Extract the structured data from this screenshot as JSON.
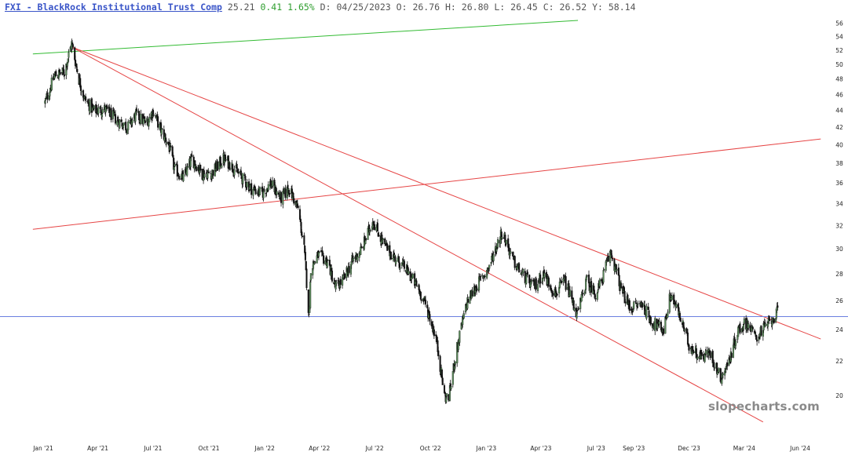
{
  "header": {
    "symbol_text": "FXI - BlackRock Institutional Trust Comp",
    "last": "25.21",
    "change": "0.41",
    "change_pct": "1.65%",
    "date_label": "D:",
    "date": "04/25/2023",
    "open_label": "O:",
    "open": "26.76",
    "high_label": "H:",
    "high": "26.80",
    "low_label": "L:",
    "low": "26.45",
    "close_label": "C:",
    "close": "26.52",
    "y_label": "Y:",
    "y": "58.14"
  },
  "watermark": "slopecharts.com",
  "colors": {
    "symbol": "#3a55c8",
    "change": "#2e9d2e",
    "candles": "#111111",
    "trend_green": "#33bb33",
    "trend_red": "#e64545",
    "horizontal": "#6a7fe0"
  },
  "chart_data": {
    "type": "candlestick",
    "title": "FXI - BlackRock Institutional Trust Comp",
    "ylim": [
      19,
      57
    ],
    "y_scale": "log",
    "y_ticks": [
      20,
      22,
      24,
      26,
      28,
      30,
      32,
      34,
      36,
      38,
      40,
      42,
      44,
      46,
      48,
      50,
      52,
      54,
      56
    ],
    "x_range": [
      "2020-12-31",
      "2024-07-05"
    ],
    "x_ticks": [
      {
        "label": "Jan '21",
        "date": "2021-01-01"
      },
      {
        "label": "Apr '21",
        "date": "2021-04-01"
      },
      {
        "label": "Jul '21",
        "date": "2021-07-01"
      },
      {
        "label": "Oct '21",
        "date": "2021-10-01"
      },
      {
        "label": "Jan '22",
        "date": "2022-01-01"
      },
      {
        "label": "Apr '22",
        "date": "2022-04-01"
      },
      {
        "label": "Jul '22",
        "date": "2022-07-01"
      },
      {
        "label": "Oct '22",
        "date": "2022-10-01"
      },
      {
        "label": "Jan '23",
        "date": "2023-01-01"
      },
      {
        "label": "Apr '23",
        "date": "2023-04-01"
      },
      {
        "label": "Jul '23",
        "date": "2023-07-01"
      },
      {
        "label": "Sep '23",
        "date": "2023-09-01"
      },
      {
        "label": "Dec '23",
        "date": "2023-12-01"
      },
      {
        "label": "Mar '24",
        "date": "2024-03-01"
      },
      {
        "label": "Jun '24",
        "date": "2024-06-01"
      }
    ],
    "price_path": [
      [
        "2021-01-04",
        45.0
      ],
      [
        "2021-01-20",
        48.5
      ],
      [
        "2021-02-05",
        49.0
      ],
      [
        "2021-02-17",
        53.0
      ],
      [
        "2021-03-01",
        48.0
      ],
      [
        "2021-03-10",
        45.5
      ],
      [
        "2021-03-25",
        44.0
      ],
      [
        "2021-04-12",
        44.2
      ],
      [
        "2021-05-01",
        43.0
      ],
      [
        "2021-05-20",
        42.0
      ],
      [
        "2021-06-03",
        43.5
      ],
      [
        "2021-06-20",
        42.5
      ],
      [
        "2021-07-01",
        44.0
      ],
      [
        "2021-07-12",
        42.0
      ],
      [
        "2021-07-27",
        40.0
      ],
      [
        "2021-08-05",
        37.5
      ],
      [
        "2021-08-20",
        36.5
      ],
      [
        "2021-09-03",
        38.5
      ],
      [
        "2021-09-20",
        37.0
      ],
      [
        "2021-10-05",
        37.0
      ],
      [
        "2021-10-25",
        38.5
      ],
      [
        "2021-11-05",
        38.0
      ],
      [
        "2021-11-25",
        36.5
      ],
      [
        "2021-12-10",
        35.5
      ],
      [
        "2021-12-28",
        35.0
      ],
      [
        "2022-01-10",
        36.0
      ],
      [
        "2022-01-28",
        34.5
      ],
      [
        "2022-02-10",
        35.5
      ],
      [
        "2022-02-25",
        33.5
      ],
      [
        "2022-03-07",
        30.0
      ],
      [
        "2022-03-15",
        24.8
      ],
      [
        "2022-03-18",
        28.5
      ],
      [
        "2022-03-30",
        29.5
      ],
      [
        "2022-04-15",
        29.0
      ],
      [
        "2022-04-27",
        27.0
      ],
      [
        "2022-05-10",
        27.5
      ],
      [
        "2022-05-25",
        29.0
      ],
      [
        "2022-06-10",
        30.0
      ],
      [
        "2022-06-28",
        32.5
      ],
      [
        "2022-07-15",
        30.5
      ],
      [
        "2022-07-30",
        29.5
      ],
      [
        "2022-08-20",
        28.5
      ],
      [
        "2022-09-10",
        27.0
      ],
      [
        "2022-09-25",
        25.5
      ],
      [
        "2022-10-10",
        23.5
      ],
      [
        "2022-10-24",
        20.0
      ],
      [
        "2022-10-31",
        19.8
      ],
      [
        "2022-11-10",
        22.0
      ],
      [
        "2022-11-20",
        24.0
      ],
      [
        "2022-12-01",
        26.0
      ],
      [
        "2022-12-15",
        27.0
      ],
      [
        "2023-01-05",
        28.5
      ],
      [
        "2023-01-27",
        31.5
      ],
      [
        "2023-02-15",
        29.0
      ],
      [
        "2023-03-01",
        28.0
      ],
      [
        "2023-03-20",
        27.0
      ],
      [
        "2023-04-05",
        28.0
      ],
      [
        "2023-04-25",
        26.5
      ],
      [
        "2023-05-10",
        27.5
      ],
      [
        "2023-05-31",
        25.0
      ],
      [
        "2023-06-15",
        27.5
      ],
      [
        "2023-07-01",
        26.5
      ],
      [
        "2023-07-10",
        27.5
      ],
      [
        "2023-07-25",
        29.8
      ],
      [
        "2023-08-10",
        27.0
      ],
      [
        "2023-08-25",
        25.5
      ],
      [
        "2023-09-15",
        25.8
      ],
      [
        "2023-10-01",
        24.5
      ],
      [
        "2023-10-20",
        24.0
      ],
      [
        "2023-11-01",
        26.5
      ],
      [
        "2023-11-15",
        25.0
      ],
      [
        "2023-12-01",
        23.0
      ],
      [
        "2023-12-20",
        22.3
      ],
      [
        "2024-01-05",
        22.5
      ],
      [
        "2024-01-22",
        21.0
      ],
      [
        "2024-02-05",
        22.0
      ],
      [
        "2024-02-20",
        24.0
      ],
      [
        "2024-03-05",
        24.5
      ],
      [
        "2024-03-20",
        23.5
      ],
      [
        "2024-04-05",
        24.2
      ],
      [
        "2024-04-25",
        25.2
      ]
    ],
    "trend_lines": [
      {
        "color": "green",
        "from": [
          "2020-12-15",
          51.5
        ],
        "to": [
          "2023-06-01",
          56.5
        ]
      },
      {
        "color": "red",
        "from": [
          "2021-02-17",
          52.5
        ],
        "to": [
          "2024-07-05",
          23.4
        ]
      },
      {
        "color": "red",
        "from": [
          "2021-02-17",
          52.5
        ],
        "to": [
          "2024-04-01",
          18.6
        ]
      },
      {
        "color": "red",
        "from": [
          "2020-12-15",
          31.7
        ],
        "to": [
          "2024-07-05",
          40.7
        ]
      }
    ],
    "horizontal_line": {
      "value": 24.9,
      "color": "blue"
    }
  }
}
